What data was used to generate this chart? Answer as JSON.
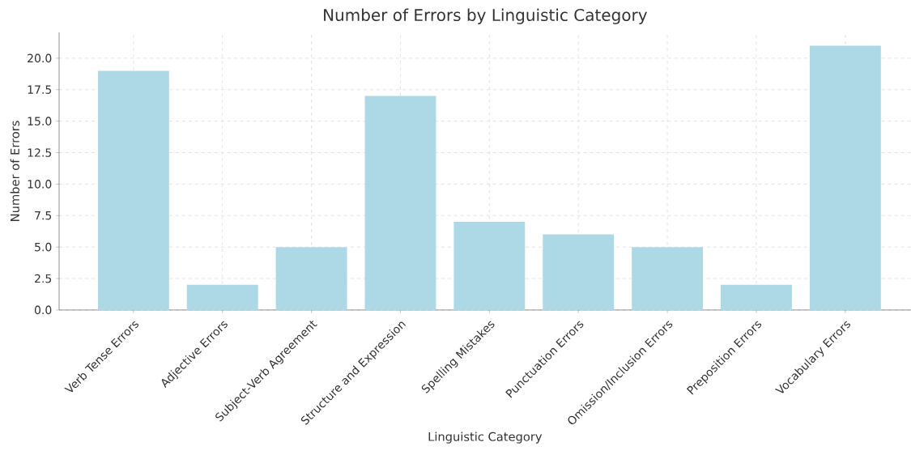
{
  "chart_data": {
    "type": "bar",
    "title": "Number of Errors by Linguistic Category",
    "xlabel": "Linguistic Category",
    "ylabel": "Number of Errors",
    "categories": [
      "Verb Tense Errors",
      "Adjective Errors",
      "Subject-Verb Agreement",
      "Structure and Expression",
      "Spelling Mistakes",
      "Punctuation Errors",
      "Omission/Inclusion Errors",
      "Preposition Errors",
      "Vocabulary Errors"
    ],
    "values": [
      19,
      2,
      5,
      17,
      7,
      6,
      5,
      2,
      21
    ],
    "color": "#add8e6",
    "ylim": [
      0,
      22.05
    ],
    "yticks": [
      {
        "value": 0,
        "label": "0.0"
      },
      {
        "value": 2.5,
        "label": "2.5"
      },
      {
        "value": 5,
        "label": "5.0"
      },
      {
        "value": 7.5,
        "label": "7.5"
      },
      {
        "value": 10,
        "label": "10.0"
      },
      {
        "value": 12.5,
        "label": "12.5"
      },
      {
        "value": 15,
        "label": "15.0"
      },
      {
        "value": 17.5,
        "label": "17.5"
      },
      {
        "value": 20,
        "label": "20.0"
      }
    ],
    "grid": true
  }
}
